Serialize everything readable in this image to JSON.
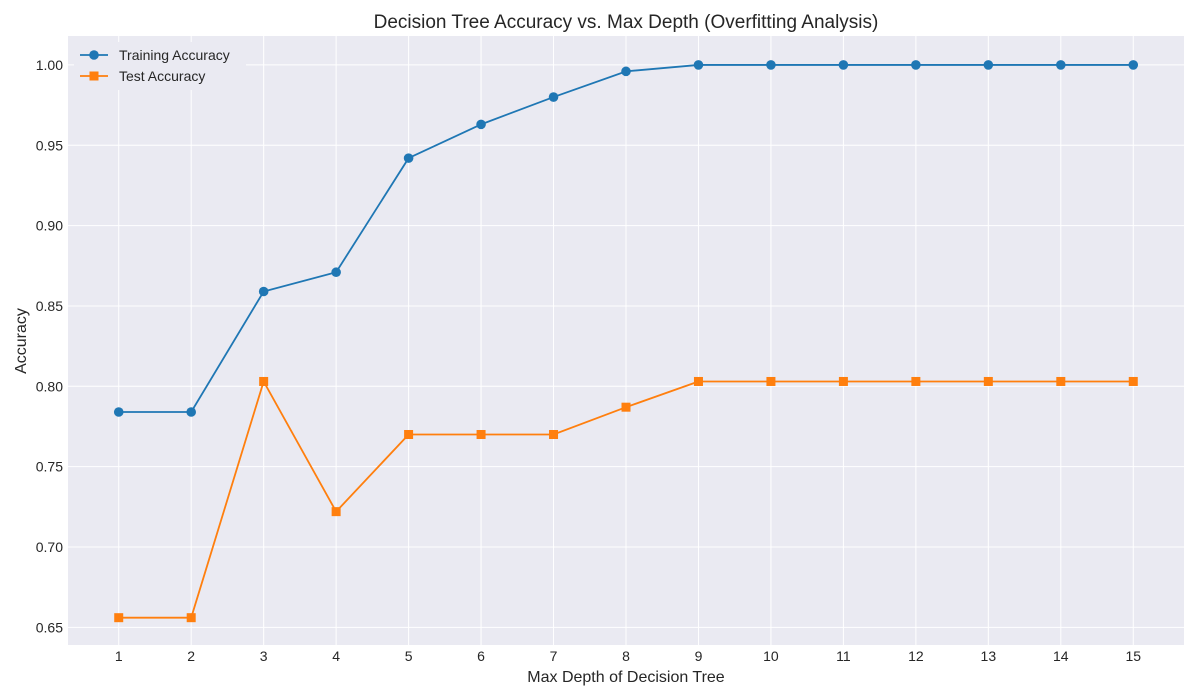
{
  "chart_data": {
    "type": "line",
    "title": "Decision Tree Accuracy vs. Max Depth (Overfitting Analysis)",
    "xlabel": "Max Depth of Decision Tree",
    "ylabel": "Accuracy",
    "x": [
      1,
      2,
      3,
      4,
      5,
      6,
      7,
      8,
      9,
      10,
      11,
      12,
      13,
      14,
      15
    ],
    "x_tick_labels": [
      "1",
      "2",
      "3",
      "4",
      "5",
      "6",
      "7",
      "8",
      "9",
      "10",
      "11",
      "12",
      "13",
      "14",
      "15"
    ],
    "y_ticks": [
      0.65,
      0.7,
      0.75,
      0.8,
      0.85,
      0.9,
      0.95,
      1.0
    ],
    "y_tick_labels": [
      "0.65",
      "0.70",
      "0.75",
      "0.80",
      "0.85",
      "0.90",
      "0.95",
      "1.00"
    ],
    "xlim": [
      0.3,
      15.7
    ],
    "ylim": [
      0.639,
      1.018
    ],
    "grid": true,
    "legend_position": "top-left",
    "background_color": "#eaeaf2",
    "series": [
      {
        "name": "Training Accuracy",
        "color": "#1f77b4",
        "marker": "circle",
        "values": [
          0.784,
          0.784,
          0.859,
          0.871,
          0.942,
          0.963,
          0.98,
          0.996,
          1.0,
          1.0,
          1.0,
          1.0,
          1.0,
          1.0,
          1.0
        ]
      },
      {
        "name": "Test Accuracy",
        "color": "#ff7f0e",
        "marker": "square",
        "values": [
          0.656,
          0.656,
          0.803,
          0.722,
          0.77,
          0.77,
          0.77,
          0.787,
          0.803,
          0.803,
          0.803,
          0.803,
          0.803,
          0.803,
          0.803
        ]
      }
    ]
  }
}
